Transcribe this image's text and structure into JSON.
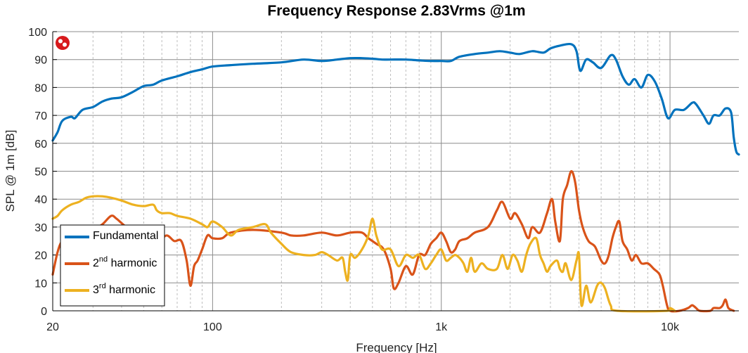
{
  "chart_data": {
    "type": "line",
    "title": "Frequency Response 2.83Vrms @1m",
    "xlabel": "Frequency [Hz]",
    "ylabel": "SPL @ 1m [dB]",
    "x_scale": "log",
    "xlim": [
      20,
      20000
    ],
    "ylim": [
      0,
      100
    ],
    "x_ticks": [
      20,
      100,
      1000,
      10000
    ],
    "x_tick_labels": [
      "20",
      "100",
      "1k",
      "10k"
    ],
    "y_ticks": [
      0,
      10,
      20,
      30,
      40,
      50,
      60,
      70,
      80,
      90,
      100
    ],
    "grid": true,
    "legend_position": "bottom-left",
    "legend": [
      {
        "label": "Fundamental",
        "sup": "",
        "suffix": ""
      },
      {
        "label": "2",
        "sup": "nd",
        "suffix": " harmonic"
      },
      {
        "label": "3",
        "sup": "rd",
        "suffix": " harmonic"
      }
    ],
    "series": [
      {
        "color": "#0072bd",
        "points": [
          [
            20,
            61
          ],
          [
            21,
            64
          ],
          [
            22,
            68
          ],
          [
            24,
            69.5
          ],
          [
            25,
            69
          ],
          [
            27,
            72
          ],
          [
            30,
            73
          ],
          [
            33,
            75
          ],
          [
            36,
            76
          ],
          [
            40,
            76.5
          ],
          [
            45,
            78.5
          ],
          [
            50,
            80.5
          ],
          [
            55,
            81
          ],
          [
            60,
            82.5
          ],
          [
            70,
            84
          ],
          [
            80,
            85.5
          ],
          [
            90,
            86.5
          ],
          [
            100,
            87.5
          ],
          [
            120,
            88
          ],
          [
            150,
            88.5
          ],
          [
            200,
            89
          ],
          [
            250,
            90
          ],
          [
            300,
            89.5
          ],
          [
            350,
            90
          ],
          [
            400,
            90.5
          ],
          [
            450,
            90.5
          ],
          [
            500,
            90.3
          ],
          [
            550,
            90
          ],
          [
            600,
            90
          ],
          [
            700,
            90
          ],
          [
            800,
            89.7
          ],
          [
            900,
            89.5
          ],
          [
            1000,
            89.5
          ],
          [
            1100,
            89.5
          ],
          [
            1200,
            91
          ],
          [
            1400,
            92
          ],
          [
            1600,
            92.5
          ],
          [
            1800,
            93
          ],
          [
            2000,
            92.5
          ],
          [
            2200,
            92
          ],
          [
            2500,
            93
          ],
          [
            2800,
            92.5
          ],
          [
            3000,
            94
          ],
          [
            3300,
            95
          ],
          [
            3700,
            95.5
          ],
          [
            3900,
            93
          ],
          [
            4050,
            86
          ],
          [
            4300,
            90
          ],
          [
            4600,
            89
          ],
          [
            5000,
            87
          ],
          [
            5500,
            91.5
          ],
          [
            5800,
            90
          ],
          [
            6200,
            84
          ],
          [
            6600,
            81
          ],
          [
            7000,
            83
          ],
          [
            7500,
            80
          ],
          [
            8000,
            84.5
          ],
          [
            8600,
            82
          ],
          [
            9200,
            76
          ],
          [
            9800,
            69
          ],
          [
            10500,
            72
          ],
          [
            11500,
            72
          ],
          [
            12500,
            74.5
          ],
          [
            13000,
            74
          ],
          [
            14000,
            70
          ],
          [
            14800,
            67
          ],
          [
            15500,
            70
          ],
          [
            16500,
            70
          ],
          [
            17500,
            72.5
          ],
          [
            18500,
            71
          ],
          [
            19000,
            62
          ],
          [
            19500,
            57
          ],
          [
            20000,
            56
          ]
        ]
      },
      {
        "color": "#d95319",
        "points": [
          [
            20,
            13
          ],
          [
            21,
            21
          ],
          [
            22,
            25
          ],
          [
            24,
            27
          ],
          [
            27,
            28
          ],
          [
            30,
            29
          ],
          [
            33,
            31
          ],
          [
            36,
            34
          ],
          [
            38,
            33
          ],
          [
            42,
            30
          ],
          [
            47,
            28
          ],
          [
            52,
            26
          ],
          [
            58,
            25
          ],
          [
            63,
            27
          ],
          [
            68,
            25
          ],
          [
            73,
            25
          ],
          [
            77,
            18
          ],
          [
            80,
            9
          ],
          [
            83,
            16
          ],
          [
            86,
            18
          ],
          [
            90,
            22
          ],
          [
            95,
            27
          ],
          [
            100,
            26
          ],
          [
            110,
            26
          ],
          [
            120,
            28
          ],
          [
            150,
            29
          ],
          [
            200,
            28
          ],
          [
            220,
            27
          ],
          [
            250,
            27
          ],
          [
            300,
            28
          ],
          [
            350,
            27
          ],
          [
            400,
            28
          ],
          [
            450,
            28
          ],
          [
            480,
            26
          ],
          [
            520,
            24
          ],
          [
            560,
            22
          ],
          [
            600,
            15
          ],
          [
            620,
            8
          ],
          [
            650,
            10
          ],
          [
            700,
            16
          ],
          [
            750,
            13
          ],
          [
            800,
            20
          ],
          [
            850,
            20
          ],
          [
            900,
            24
          ],
          [
            950,
            26
          ],
          [
            1000,
            28
          ],
          [
            1050,
            25
          ],
          [
            1100,
            21
          ],
          [
            1150,
            22
          ],
          [
            1200,
            25
          ],
          [
            1300,
            26
          ],
          [
            1400,
            28
          ],
          [
            1600,
            30
          ],
          [
            1750,
            36
          ],
          [
            1850,
            39
          ],
          [
            2000,
            33
          ],
          [
            2100,
            35
          ],
          [
            2250,
            31
          ],
          [
            2400,
            26
          ],
          [
            2500,
            30
          ],
          [
            2700,
            28
          ],
          [
            2900,
            35
          ],
          [
            3050,
            40
          ],
          [
            3150,
            32
          ],
          [
            3300,
            25
          ],
          [
            3400,
            40
          ],
          [
            3550,
            45
          ],
          [
            3700,
            50
          ],
          [
            3850,
            46
          ],
          [
            4000,
            36
          ],
          [
            4150,
            30
          ],
          [
            4400,
            25
          ],
          [
            4700,
            23
          ],
          [
            5000,
            18
          ],
          [
            5200,
            17
          ],
          [
            5400,
            20
          ],
          [
            5600,
            26
          ],
          [
            5800,
            30
          ],
          [
            6000,
            32
          ],
          [
            6200,
            25
          ],
          [
            6500,
            22
          ],
          [
            6800,
            18
          ],
          [
            7100,
            20
          ],
          [
            7500,
            17
          ],
          [
            8000,
            17
          ],
          [
            8500,
            15
          ],
          [
            9000,
            13
          ],
          [
            9300,
            9
          ],
          [
            9700,
            2
          ],
          [
            10000,
            0
          ],
          [
            11000,
            0
          ],
          [
            12000,
            1
          ],
          [
            12500,
            2
          ],
          [
            13000,
            1
          ],
          [
            13500,
            0
          ],
          [
            15000,
            0
          ],
          [
            15500,
            1
          ],
          [
            16500,
            1
          ],
          [
            17000,
            2
          ],
          [
            17500,
            4
          ],
          [
            18000,
            1
          ],
          [
            19000,
            0
          ]
        ]
      },
      {
        "color": "#edb120",
        "points": [
          [
            20,
            33
          ],
          [
            21,
            34
          ],
          [
            22,
            36
          ],
          [
            24,
            38
          ],
          [
            26,
            39
          ],
          [
            28,
            40.5
          ],
          [
            30,
            41
          ],
          [
            33,
            41
          ],
          [
            36,
            40.5
          ],
          [
            40,
            39.5
          ],
          [
            45,
            38
          ],
          [
            50,
            37.5
          ],
          [
            55,
            38
          ],
          [
            57,
            36
          ],
          [
            60,
            35
          ],
          [
            65,
            35
          ],
          [
            70,
            34
          ],
          [
            80,
            33
          ],
          [
            90,
            31
          ],
          [
            95,
            30
          ],
          [
            100,
            32
          ],
          [
            110,
            30
          ],
          [
            120,
            27
          ],
          [
            130,
            29
          ],
          [
            150,
            30
          ],
          [
            170,
            31
          ],
          [
            180,
            28
          ],
          [
            200,
            24
          ],
          [
            220,
            21
          ],
          [
            250,
            20
          ],
          [
            280,
            20
          ],
          [
            300,
            21
          ],
          [
            320,
            20
          ],
          [
            350,
            18
          ],
          [
            370,
            19
          ],
          [
            380,
            14
          ],
          [
            390,
            11
          ],
          [
            400,
            20
          ],
          [
            420,
            19
          ],
          [
            450,
            22
          ],
          [
            480,
            27
          ],
          [
            500,
            33
          ],
          [
            520,
            27
          ],
          [
            550,
            22
          ],
          [
            600,
            22
          ],
          [
            650,
            16
          ],
          [
            700,
            20
          ],
          [
            750,
            19
          ],
          [
            800,
            20
          ],
          [
            850,
            15
          ],
          [
            900,
            17
          ],
          [
            950,
            20
          ],
          [
            1000,
            22
          ],
          [
            1050,
            18
          ],
          [
            1100,
            19
          ],
          [
            1150,
            20
          ],
          [
            1200,
            19
          ],
          [
            1250,
            17
          ],
          [
            1300,
            14
          ],
          [
            1350,
            19
          ],
          [
            1400,
            14
          ],
          [
            1500,
            17
          ],
          [
            1600,
            15
          ],
          [
            1750,
            15
          ],
          [
            1850,
            20
          ],
          [
            1950,
            15
          ],
          [
            2050,
            20
          ],
          [
            2150,
            18
          ],
          [
            2250,
            14
          ],
          [
            2350,
            20
          ],
          [
            2450,
            24
          ],
          [
            2600,
            26
          ],
          [
            2700,
            20
          ],
          [
            2800,
            17
          ],
          [
            2900,
            14
          ],
          [
            3000,
            16
          ],
          [
            3200,
            18
          ],
          [
            3300,
            15
          ],
          [
            3400,
            14
          ],
          [
            3500,
            17
          ],
          [
            3700,
            11
          ],
          [
            3900,
            18
          ],
          [
            4000,
            20
          ],
          [
            4100,
            2
          ],
          [
            4300,
            9
          ],
          [
            4500,
            3
          ],
          [
            4800,
            9
          ],
          [
            5000,
            10
          ],
          [
            5200,
            8
          ],
          [
            5500,
            2
          ],
          [
            5900,
            0
          ],
          [
            9700,
            0
          ],
          [
            10000,
            1
          ],
          [
            10500,
            0
          ]
        ]
      }
    ]
  }
}
